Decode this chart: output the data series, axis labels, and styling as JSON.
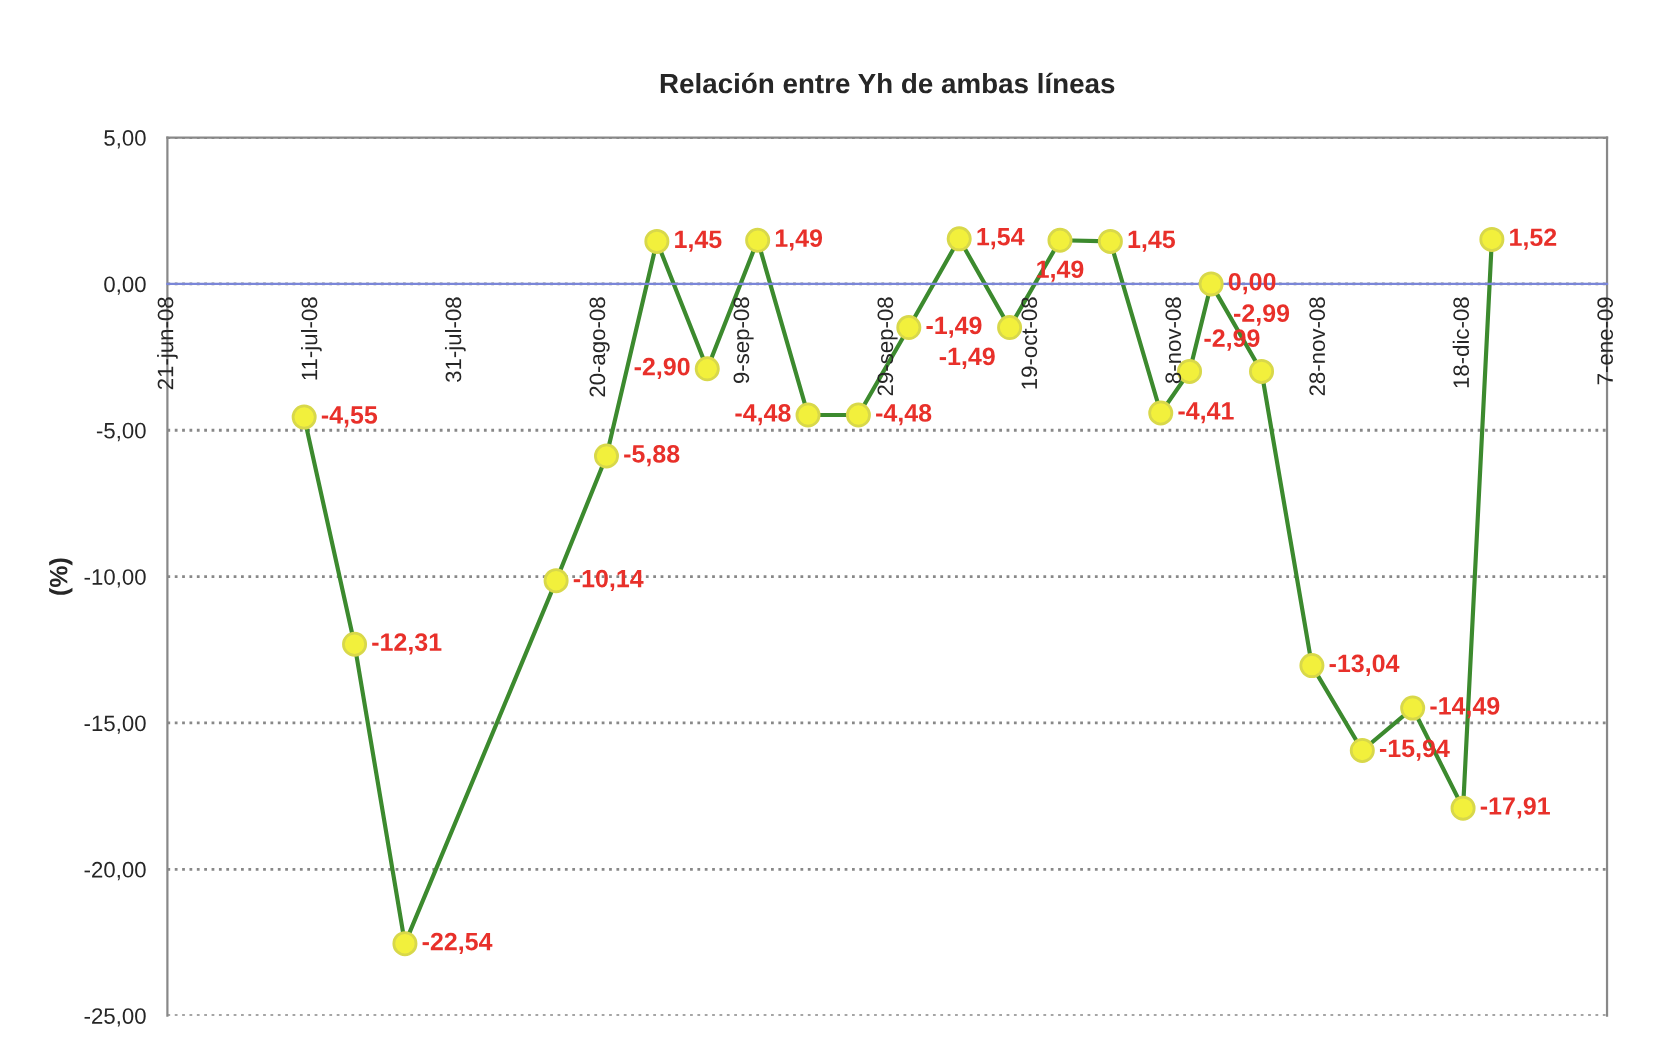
{
  "chart_data": {
    "type": "line",
    "title": "Relación entre Yh de ambas líneas",
    "ylabel": "(%)",
    "x": [
      "2008-07-10",
      "2008-07-17",
      "2008-07-24",
      "2008-08-14",
      "2008-08-21",
      "2008-08-28",
      "2008-09-04",
      "2008-09-11",
      "2008-09-18",
      "2008-09-25",
      "2008-10-02",
      "2008-10-09",
      "2008-10-16",
      "2008-10-23",
      "2008-10-30",
      "2008-11-06",
      "2008-11-10",
      "2008-11-13",
      "2008-11-20",
      "2008-11-27",
      "2008-12-04",
      "2008-12-11",
      "2008-12-18",
      "2008-12-22"
    ],
    "series": [
      {
        "color": "#3c8a2e",
        "values": [
          -4.55,
          -12.31,
          -22.54,
          -10.14,
          -5.88,
          1.45,
          -2.9,
          1.49,
          -4.48,
          -4.48,
          -1.49,
          1.54,
          -1.49,
          1.49,
          1.45,
          -4.41,
          -2.99,
          0.0,
          -2.99,
          -13.04,
          -15.94,
          -14.49,
          -17.91,
          1.52
        ],
        "value_labels": [
          "-4,55",
          "-12,31",
          "-22,54",
          "-10,14",
          "-5,88",
          "1,45",
          "-2,90",
          "1,49",
          "-4,48",
          "-4,48",
          "-1,49",
          "1,54",
          "-1,49",
          "1,49",
          "1,45",
          "-4,41",
          "-2,99",
          "0,00",
          "-2,99",
          "-13,04",
          "-15,94",
          "-14,49",
          "-17,91",
          "1,52"
        ]
      }
    ],
    "marker": "circle",
    "line_style": "solid",
    "grid": "y",
    "xlim": [
      "2008-06-21",
      "2009-01-07"
    ],
    "xticks": [
      {
        "value": "2008-06-21",
        "label": "21-jun-08"
      },
      {
        "value": "2008-07-11",
        "label": "11-jul-08"
      },
      {
        "value": "2008-07-31",
        "label": "31-jul-08"
      },
      {
        "value": "2008-08-20",
        "label": "20-ago-08"
      },
      {
        "value": "2008-09-09",
        "label": "9-sep-08"
      },
      {
        "value": "2008-09-29",
        "label": "29-sep-08"
      },
      {
        "value": "2008-10-19",
        "label": "19-oct-08"
      },
      {
        "value": "2008-11-08",
        "label": "8-nov-08"
      },
      {
        "value": "2008-11-28",
        "label": "28-nov-08"
      },
      {
        "value": "2008-12-18",
        "label": "18-dic-08"
      },
      {
        "value": "2009-01-07",
        "label": "7-ene-09"
      }
    ],
    "ylim": [
      -25,
      5
    ],
    "yticks": [
      {
        "value": 5,
        "label": "5,00"
      },
      {
        "value": 0,
        "label": "0,00"
      },
      {
        "value": -5,
        "label": "-5,00"
      },
      {
        "value": -10,
        "label": "-10,00"
      },
      {
        "value": -15,
        "label": "-15,00"
      },
      {
        "value": -20,
        "label": "-20,00"
      },
      {
        "value": -25,
        "label": "-25,00"
      }
    ]
  }
}
